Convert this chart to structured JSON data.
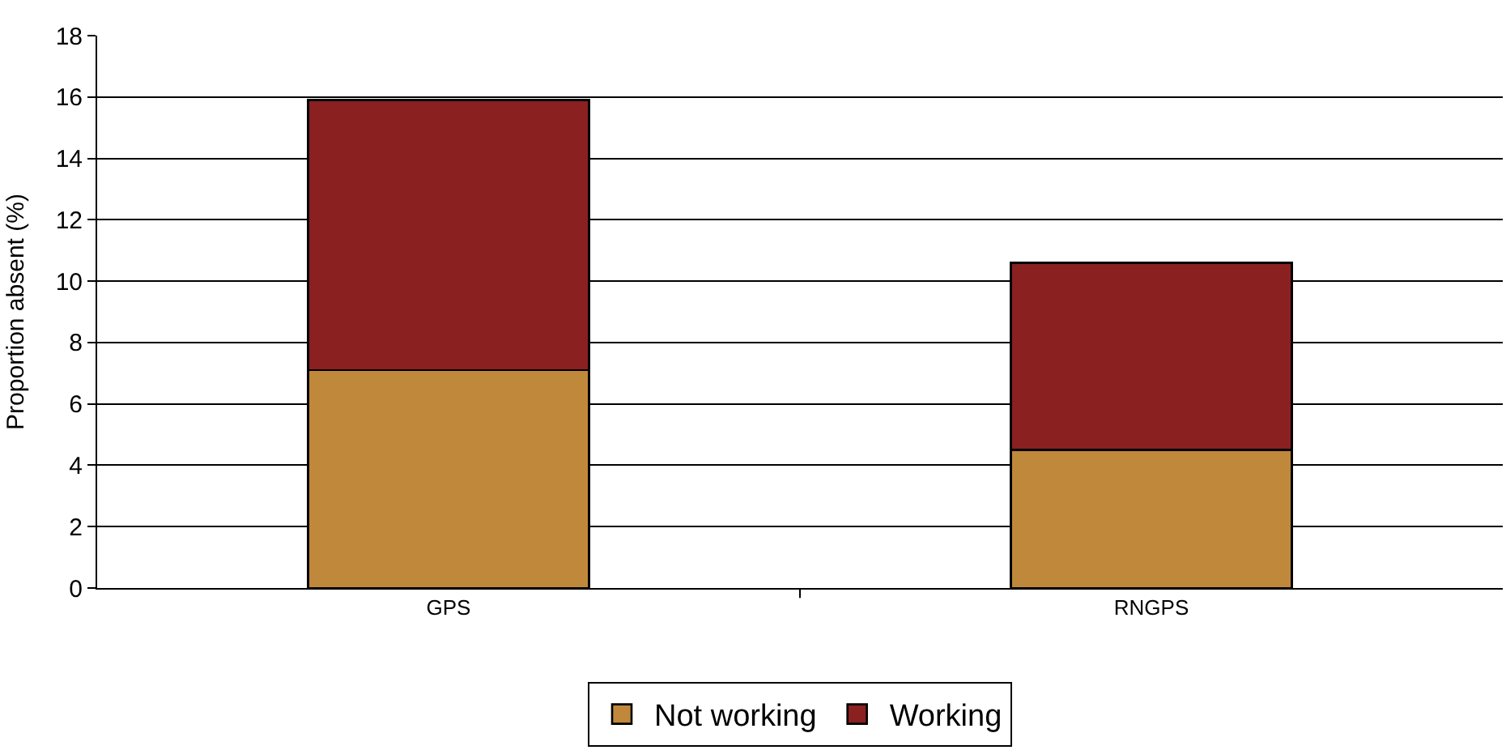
{
  "chart_data": {
    "type": "bar",
    "stacked": true,
    "categories": [
      "GPS",
      "RNGPS"
    ],
    "series": [
      {
        "name": "Not working",
        "color": "#c0883a",
        "values": [
          7.1,
          4.5
        ]
      },
      {
        "name": "Working",
        "color": "#8a2020",
        "values": [
          8.8,
          6.1
        ]
      }
    ],
    "ylabel": "Proportion absent (%)",
    "ylim": [
      0,
      18
    ],
    "yticks": [
      0,
      2,
      4,
      6,
      8,
      10,
      12,
      14,
      16,
      18
    ],
    "grid": "y",
    "legend": "bottom"
  }
}
